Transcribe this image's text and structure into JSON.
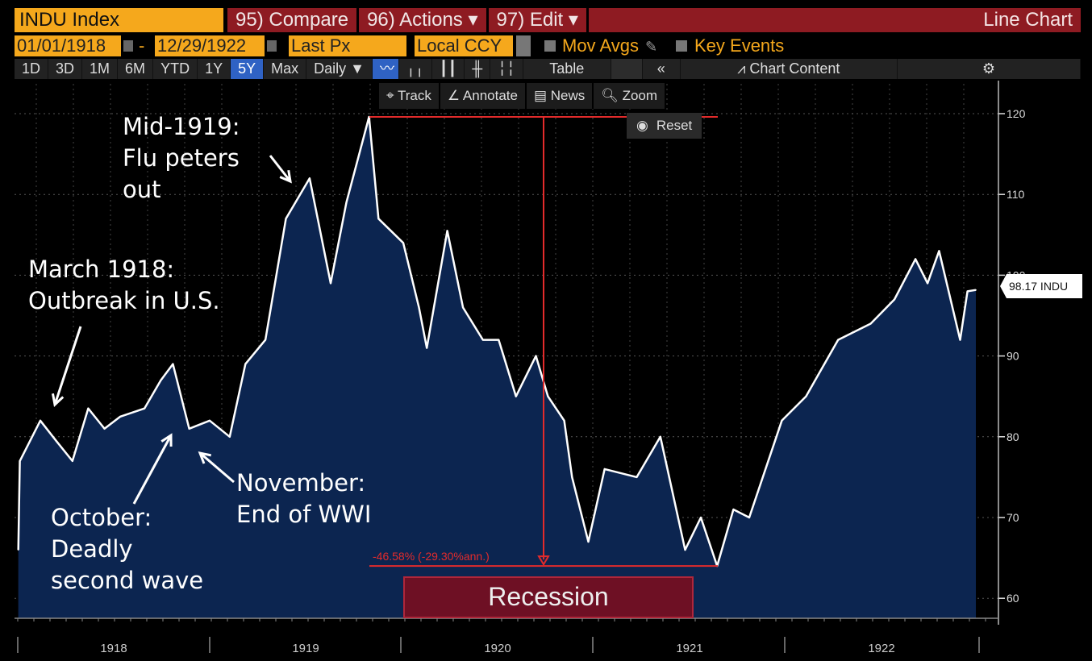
{
  "header": {
    "ticker": "INDU Index",
    "compare": "95) Compare",
    "actions": "96) Actions ▾",
    "edit": "97) Edit ▾",
    "chart_type": "Line Chart"
  },
  "controls": {
    "start_date": "01/01/1918",
    "date_sep": "-",
    "end_date": "12/29/1922",
    "field": "Last Px",
    "currency": "Local CCY",
    "mov_avgs": "Mov Avgs",
    "key_events": "Key Events"
  },
  "toolbar": {
    "ranges": [
      "1D",
      "3D",
      "1M",
      "6M",
      "YTD",
      "1Y",
      "5Y",
      "Max"
    ],
    "selected_range": "5Y",
    "frequency": "Daily ▼",
    "table": "Table",
    "collapse": "«",
    "chart_content": "Chart Content",
    "settings_icon": "gear-icon"
  },
  "float_tools": {
    "track": "Track",
    "annotate": "Annotate",
    "news": "News",
    "zoom": "Zoom",
    "reset": "Reset"
  },
  "colors": {
    "orange": "#f5a81c",
    "red": "#8e1b22",
    "area": "#0c2550",
    "line": "#ffffff",
    "measure": "#e32b2b",
    "selected": "#2f62c4"
  },
  "chart_data": {
    "type": "area",
    "series": [
      {
        "x": [
          "1918-01-02",
          "1918-01-05",
          "1918-02-13",
          "1918-03-15",
          "1918-04-15",
          "1918-05-15",
          "1918-06-15",
          "1918-07-15",
          "1918-08-30",
          "1918-09-30",
          "1918-10-23",
          "1918-11-23",
          "1919-01-01",
          "1919-02-08",
          "1919-03-10",
          "1919-04-17",
          "1919-05-26",
          "1919-07-10",
          "1919-08-19",
          "1919-09-18",
          "1919-10-31",
          "1919-11-18",
          "1920-01-04",
          "1920-02-03",
          "1920-02-18",
          "1920-03-28",
          "1920-04-27",
          "1920-06-04",
          "1920-07-04",
          "1920-08-06",
          "1920-09-13",
          "1920-10-06",
          "1920-11-06",
          "1920-11-21",
          "1920-12-22",
          "1921-01-22",
          "1921-03-24",
          "1921-05-08",
          "1921-06-24",
          "1921-07-24",
          "1921-08-24",
          "1921-09-24",
          "1921-10-24",
          "1921-12-25",
          "1922-02-09",
          "1922-04-11",
          "1922-06-12",
          "1922-07-27",
          "1922-09-05",
          "1922-09-28",
          "1922-10-20",
          "1922-11-29",
          "1922-12-13",
          "1922-12-29"
        ],
        "y": [
          66,
          77,
          82,
          79.5,
          77,
          83.5,
          81,
          82.5,
          83.5,
          87,
          89,
          81,
          82,
          80,
          89,
          92,
          107,
          112,
          99,
          109,
          119.6,
          107,
          104,
          96,
          91,
          105.5,
          96,
          92,
          92,
          85,
          90,
          85,
          82,
          75,
          67,
          76,
          75,
          80,
          66,
          70,
          64,
          71,
          70,
          82,
          85,
          92,
          94,
          97,
          102,
          99,
          103,
          92,
          98,
          98.17
        ]
      }
    ],
    "ylim": [
      58,
      122
    ],
    "y_ticks": [
      "120",
      "110",
      "100",
      "90",
      "80",
      "70",
      "60"
    ],
    "x_ticks": [
      "1918",
      "1919",
      "1920",
      "1921",
      "1922"
    ],
    "last_value_label": "98.17 INDU",
    "grid": true,
    "measurement": {
      "label": "-46.58% (-29.30%ann.)",
      "high": 119.6,
      "low": 64
    },
    "shaded_region": {
      "label": "Recession",
      "start": "1920-01-15",
      "end": "1921-07-15"
    },
    "annotations": [
      {
        "id": "march",
        "text": "March 1918:\nOutbreak in U.S."
      },
      {
        "id": "mid1919",
        "text": "Mid-1919:\nFlu peters\nout"
      },
      {
        "id": "october",
        "text": "October:\nDeadly\nsecond wave"
      },
      {
        "id": "november",
        "text": "November:\nEnd of WWI"
      }
    ]
  }
}
